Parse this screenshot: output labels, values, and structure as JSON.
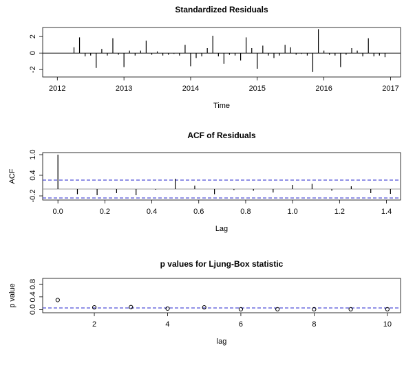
{
  "chart_data": [
    {
      "type": "spike",
      "title": "Standardized Residuals",
      "x_label": "Time",
      "x": [
        2012.25,
        2012.333,
        2012.417,
        2012.5,
        2012.583,
        2012.667,
        2012.75,
        2012.833,
        2012.917,
        2013,
        2013.083,
        2013.167,
        2013.25,
        2013.333,
        2013.417,
        2013.5,
        2013.583,
        2013.667,
        2013.75,
        2013.833,
        2013.917,
        2014,
        2014.083,
        2014.167,
        2014.25,
        2014.333,
        2014.417,
        2014.5,
        2014.583,
        2014.667,
        2014.75,
        2014.833,
        2014.917,
        2015,
        2015.083,
        2015.167,
        2015.25,
        2015.333,
        2015.417,
        2015.5,
        2015.583,
        2015.667,
        2015.75,
        2015.833,
        2015.917,
        2016,
        2016.083,
        2016.167,
        2016.25,
        2016.333,
        2016.417,
        2016.5,
        2016.583,
        2016.667,
        2016.75,
        2016.833,
        2016.917
      ],
      "values": [
        0.7,
        1.9,
        -0.4,
        -0.3,
        -1.8,
        0.5,
        -0.3,
        1.8,
        -0.2,
        -1.7,
        0.3,
        -0.3,
        0.3,
        1.5,
        -0.2,
        0.2,
        -0.3,
        -0.2,
        -0.1,
        -0.3,
        1.0,
        -1.6,
        -0.6,
        -0.4,
        0.6,
        2.1,
        -0.4,
        -1.3,
        -0.2,
        -0.3,
        -0.9,
        1.9,
        0.6,
        -1.9,
        0.9,
        -0.3,
        -0.6,
        -0.3,
        1.0,
        0.7,
        -0.2,
        -0.1,
        -0.3,
        -2.3,
        2.9,
        0.3,
        -0.2,
        -0.3,
        -1.7,
        -0.2,
        0.6,
        0.3,
        -0.4,
        1.8,
        -0.4,
        -0.3,
        -0.5
      ],
      "color": "#000000",
      "xlim": [
        2011.78,
        2017.15
      ],
      "xticks": [
        2012,
        2013,
        2014,
        2015,
        2016,
        2017
      ],
      "ylim": [
        -2.9,
        3.1
      ],
      "yticks": [
        -2,
        0,
        2
      ],
      "hlines": [
        {
          "value": 0,
          "color": "#000000",
          "dashed": false
        }
      ]
    },
    {
      "type": "spike",
      "title": "ACF of Residuals",
      "x_label": "Lag",
      "y_label": "ACF",
      "x": [
        0,
        0.083,
        0.167,
        0.25,
        0.333,
        0.417,
        0.5,
        0.583,
        0.667,
        0.75,
        0.833,
        0.917,
        1,
        1.083,
        1.167,
        1.25,
        1.333,
        1.417
      ],
      "values": [
        1.0,
        -0.15,
        -0.18,
        -0.12,
        -0.18,
        -0.02,
        0.3,
        0.1,
        -0.15,
        -0.03,
        -0.05,
        -0.1,
        0.12,
        0.15,
        -0.05,
        0.08,
        -0.12,
        -0.14
      ],
      "color": "#000000",
      "xlim": [
        -0.065,
        1.46
      ],
      "xticks": [
        {
          "value": 0,
          "label": "0.0"
        },
        0.2,
        0.4,
        0.6,
        0.8,
        {
          "value": 1,
          "label": "1.0"
        },
        1.2,
        1.4
      ],
      "ylim": [
        -0.32,
        1.06
      ],
      "yticks": [
        -0.2,
        0.4,
        {
          "value": 1,
          "label": "1.0"
        }
      ],
      "hlines": [
        {
          "value": 0,
          "color": "#999999",
          "dashed": false
        },
        {
          "value": 0.26,
          "color": "#2222cc",
          "dashed": true
        },
        {
          "value": -0.26,
          "color": "#2222cc",
          "dashed": true
        }
      ]
    },
    {
      "type": "scatter",
      "title": "p values for Ljung-Box statistic",
      "x_label": "lag",
      "y_label": "p value",
      "x": [
        1,
        2,
        3,
        4,
        5,
        6,
        7,
        8,
        9,
        10
      ],
      "values": [
        0.3,
        0.07,
        0.08,
        0.03,
        0.07,
        0.01,
        0.01,
        0.01,
        0.01,
        0.01
      ],
      "color": "#000000",
      "xlim": [
        0.59,
        10.36
      ],
      "xticks": [
        2,
        4,
        6,
        8,
        10
      ],
      "ylim": [
        -0.1,
        0.98
      ],
      "yticks": [
        {
          "value": 0,
          "label": "0.0"
        },
        0.4,
        0.8
      ],
      "hlines": [
        {
          "value": 0.05,
          "color": "#2222cc",
          "dashed": true
        }
      ]
    }
  ]
}
